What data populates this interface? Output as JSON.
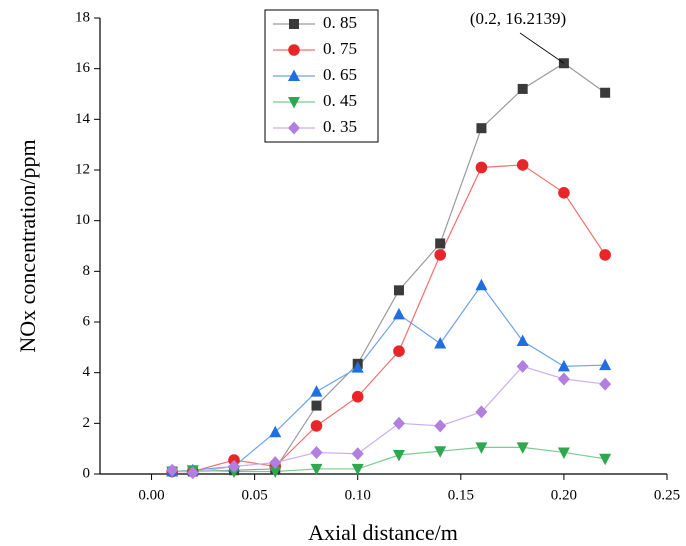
{
  "chart_data": {
    "type": "line",
    "x_label": "Axial distance/m",
    "y_label": "NOx concentration/ppm",
    "x": [
      0.01,
      0.02,
      0.04,
      0.06,
      0.08,
      0.1,
      0.12,
      0.14,
      0.16,
      0.18,
      0.2,
      0.22
    ],
    "series": [
      {
        "name": "0. 85",
        "color": "#3a3a3a",
        "line_color": "#9a9a9a",
        "marker": "square",
        "values": [
          0.1,
          0.1,
          0.15,
          0.2,
          2.7,
          4.35,
          7.25,
          9.1,
          13.65,
          15.2,
          16.2139,
          15.05
        ]
      },
      {
        "name": "0. 75",
        "color": "#e8262a",
        "line_color": "#f07070",
        "marker": "circle",
        "values": [
          0.1,
          0.1,
          0.55,
          0.3,
          1.9,
          3.05,
          4.85,
          8.65,
          12.1,
          12.2,
          11.1,
          8.65
        ]
      },
      {
        "name": "0. 65",
        "color": "#1f6fe0",
        "line_color": "#6fa3ec",
        "marker": "triangle-up",
        "values": [
          0.1,
          0.15,
          0.3,
          1.65,
          3.25,
          4.2,
          6.3,
          5.15,
          7.45,
          5.25,
          4.25,
          4.3
        ]
      },
      {
        "name": "0. 45",
        "color": "#2ea84e",
        "line_color": "#7acb91",
        "marker": "triangle-down",
        "values": [
          0.1,
          0.15,
          0.1,
          0.1,
          0.2,
          0.2,
          0.75,
          0.9,
          1.05,
          1.05,
          0.85,
          0.6
        ]
      },
      {
        "name": "0. 35",
        "color": "#b07fe0",
        "line_color": "#cfaeef",
        "marker": "diamond",
        "values": [
          0.15,
          0.05,
          0.3,
          0.45,
          0.85,
          0.8,
          2.0,
          1.9,
          2.45,
          4.25,
          3.75,
          3.55
        ]
      }
    ],
    "xlim": [
      -0.025,
      0.25
    ],
    "ylim": [
      0,
      18
    ],
    "xticks": [
      {
        "value": 0,
        "label": "0.00"
      },
      {
        "value": 0.05,
        "label": "0.05"
      },
      {
        "value": 0.1,
        "label": "0.10"
      },
      {
        "value": 0.15,
        "label": "0.15"
      },
      {
        "value": 0.2,
        "label": "0.20"
      },
      {
        "value": 0.25,
        "label": "0.25"
      }
    ],
    "yticks": [
      0,
      2,
      4,
      6,
      8,
      10,
      12,
      14,
      16,
      18
    ],
    "annotation": "(0.2,  16.2139)",
    "legend": "upper-left",
    "grid": false
  }
}
